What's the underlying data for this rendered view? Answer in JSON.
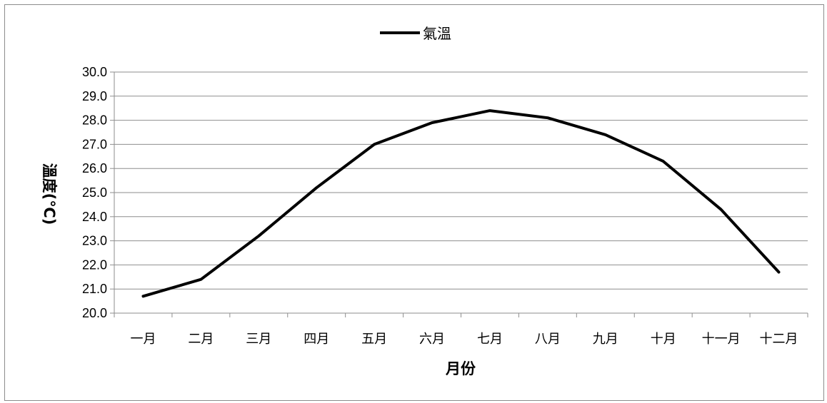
{
  "chart_data": {
    "type": "line",
    "categories": [
      "一月",
      "二月",
      "三月",
      "四月",
      "五月",
      "六月",
      "七月",
      "八月",
      "九月",
      "十月",
      "十一月",
      "十二月"
    ],
    "series": [
      {
        "name": "氣溫",
        "values": [
          20.7,
          21.4,
          23.2,
          25.2,
          27.0,
          27.9,
          28.4,
          28.1,
          27.4,
          26.3,
          24.3,
          21.7
        ],
        "color": "#000000"
      }
    ],
    "title": "",
    "xlabel": "月份",
    "ylabel": "溫度(℃)",
    "ylim": [
      20.0,
      30.0
    ],
    "yticks": [
      "20.0",
      "21.0",
      "22.0",
      "23.0",
      "24.0",
      "25.0",
      "26.0",
      "27.0",
      "28.0",
      "29.0",
      "30.0"
    ],
    "grid": "horizontal",
    "legend": "top"
  }
}
